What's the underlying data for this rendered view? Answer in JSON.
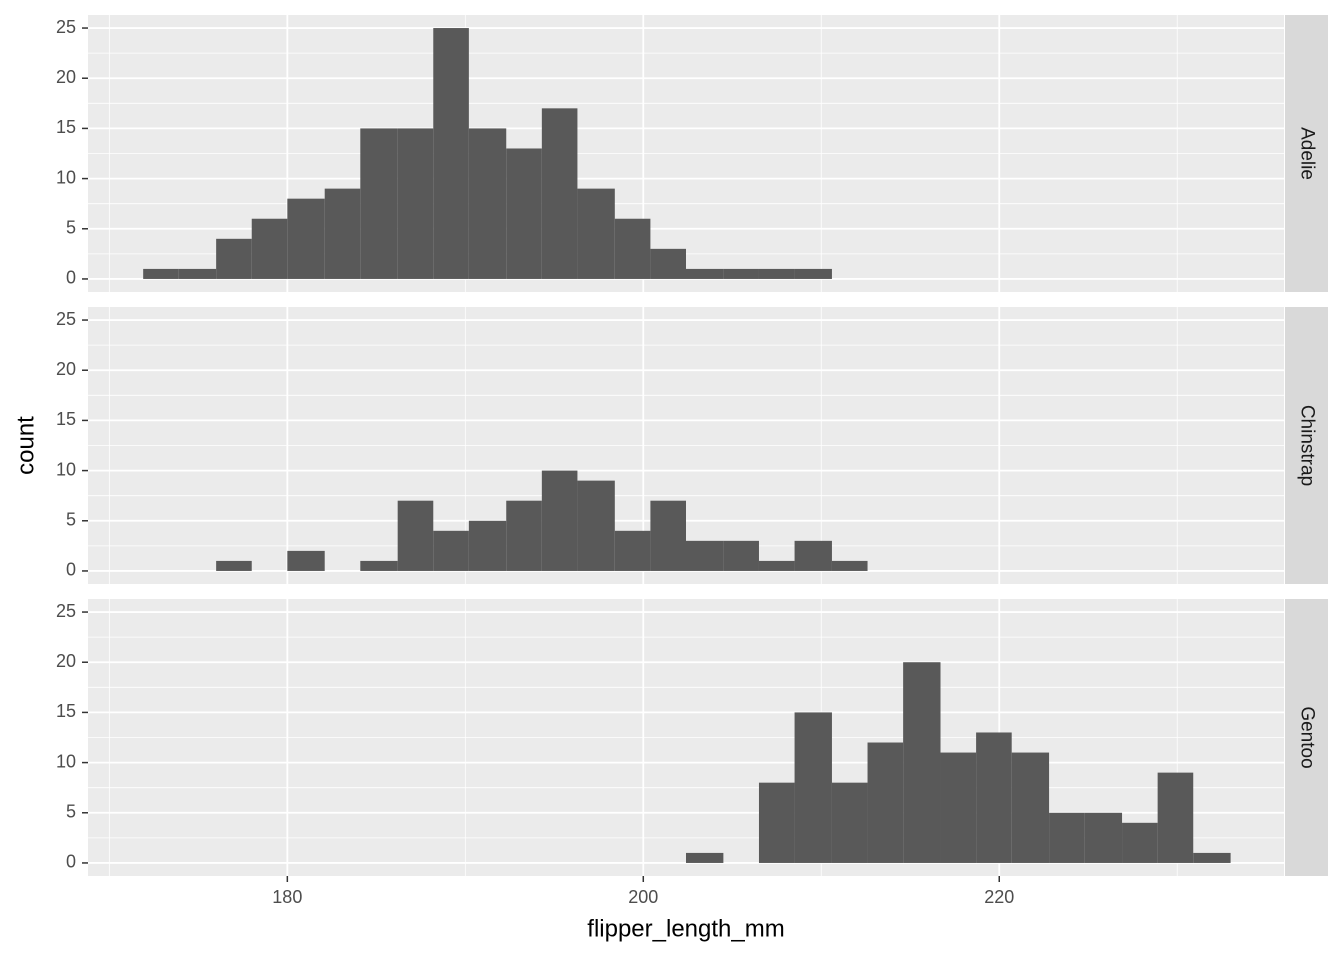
{
  "chart_data": [
    {
      "type": "histogram",
      "facet": "Adelie",
      "color": "#595959",
      "grid": true,
      "bins": [
        171.9,
        173.9,
        176.0,
        178.0,
        180.0,
        182.1,
        184.1,
        186.2,
        188.2,
        190.2,
        192.3,
        194.3,
        196.3,
        198.4,
        200.4,
        202.4,
        204.5,
        206.5,
        208.5,
        210.6,
        212.6,
        214.6,
        216.7,
        218.7,
        220.7,
        222.8,
        224.8,
        226.9,
        228.9,
        230.9,
        233.0
      ],
      "values": [
        1,
        1,
        4,
        6,
        8,
        9,
        15,
        15,
        25,
        15,
        13,
        17,
        9,
        6,
        3,
        1,
        1,
        1,
        1,
        0,
        0,
        0,
        0,
        0,
        0,
        0,
        0,
        0,
        0,
        0
      ],
      "xlim": [
        168.8,
        236.0
      ],
      "xticks": [
        180,
        200,
        220
      ],
      "ylim": [
        -1.3,
        26.3
      ],
      "yticks": [
        0,
        5,
        10,
        15,
        20,
        25
      ]
    },
    {
      "type": "histogram",
      "facet": "Chinstrap",
      "color": "#595959",
      "grid": true,
      "ylabel": "count",
      "bins": [
        171.9,
        173.9,
        176.0,
        178.0,
        180.0,
        182.1,
        184.1,
        186.2,
        188.2,
        190.2,
        192.3,
        194.3,
        196.3,
        198.4,
        200.4,
        202.4,
        204.5,
        206.5,
        208.5,
        210.6,
        212.6,
        214.6,
        216.7,
        218.7,
        220.7,
        222.8,
        224.8,
        226.9,
        228.9,
        230.9,
        233.0
      ],
      "values": [
        0,
        0,
        1,
        0,
        2,
        0,
        1,
        7,
        4,
        5,
        7,
        10,
        9,
        4,
        7,
        3,
        3,
        1,
        3,
        1,
        0,
        0,
        0,
        0,
        0,
        0,
        0,
        0,
        0,
        0
      ],
      "xlim": [
        168.8,
        236.0
      ],
      "xticks": [
        180,
        200,
        220
      ],
      "ylim": [
        -1.3,
        26.3
      ],
      "yticks": [
        0,
        5,
        10,
        15,
        20,
        25
      ]
    },
    {
      "type": "histogram",
      "facet": "Gentoo",
      "color": "#595959",
      "grid": true,
      "xlabel": "flipper_length_mm",
      "bins": [
        171.9,
        173.9,
        176.0,
        178.0,
        180.0,
        182.1,
        184.1,
        186.2,
        188.2,
        190.2,
        192.3,
        194.3,
        196.3,
        198.4,
        200.4,
        202.4,
        204.5,
        206.5,
        208.5,
        210.6,
        212.6,
        214.6,
        216.7,
        218.7,
        220.7,
        222.8,
        224.8,
        226.9,
        228.9,
        230.9,
        233.0
      ],
      "values": [
        0,
        0,
        0,
        0,
        0,
        0,
        0,
        0,
        0,
        0,
        0,
        0,
        0,
        0,
        0,
        1,
        0,
        8,
        15,
        8,
        12,
        20,
        11,
        13,
        11,
        5,
        5,
        4,
        9,
        1
      ],
      "xlim": [
        168.8,
        236.0
      ],
      "xticks": [
        180,
        200,
        220
      ],
      "ylim": [
        -1.3,
        26.3
      ],
      "yticks": [
        0,
        5,
        10,
        15,
        20,
        25
      ]
    }
  ]
}
